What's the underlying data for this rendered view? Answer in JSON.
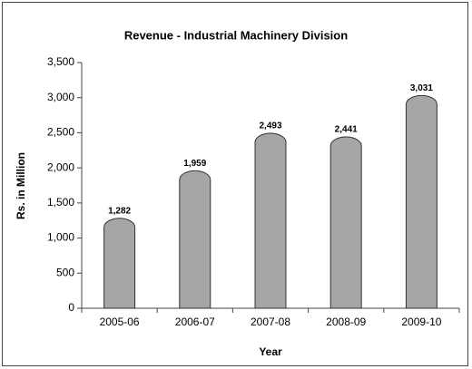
{
  "chart_data": {
    "type": "bar",
    "title": "Revenue - Industrial Machinery Division",
    "x_label": "Year",
    "y_label": "Rs. in Million",
    "categories": [
      "2005-06",
      "2006-07",
      "2007-08",
      "2008-09",
      "2009-10"
    ],
    "values": [
      1282,
      1959,
      2493,
      2441,
      3031
    ],
    "value_labels": [
      "1,282",
      "1,959",
      "2,493",
      "2,441",
      "3,031"
    ],
    "color": "#a6a6a6",
    "ylim": [
      0,
      3500
    ],
    "yticks": [
      0,
      500,
      {
        "value": 1000,
        "label": "1,000"
      },
      {
        "value": 1500,
        "label": "1,500"
      },
      {
        "value": 2000,
        "label": "2,000"
      },
      {
        "value": 2500,
        "label": "2,500"
      },
      {
        "value": 3000,
        "label": "3,000"
      },
      {
        "value": 3500,
        "label": "3,500"
      }
    ],
    "grid": false
  }
}
